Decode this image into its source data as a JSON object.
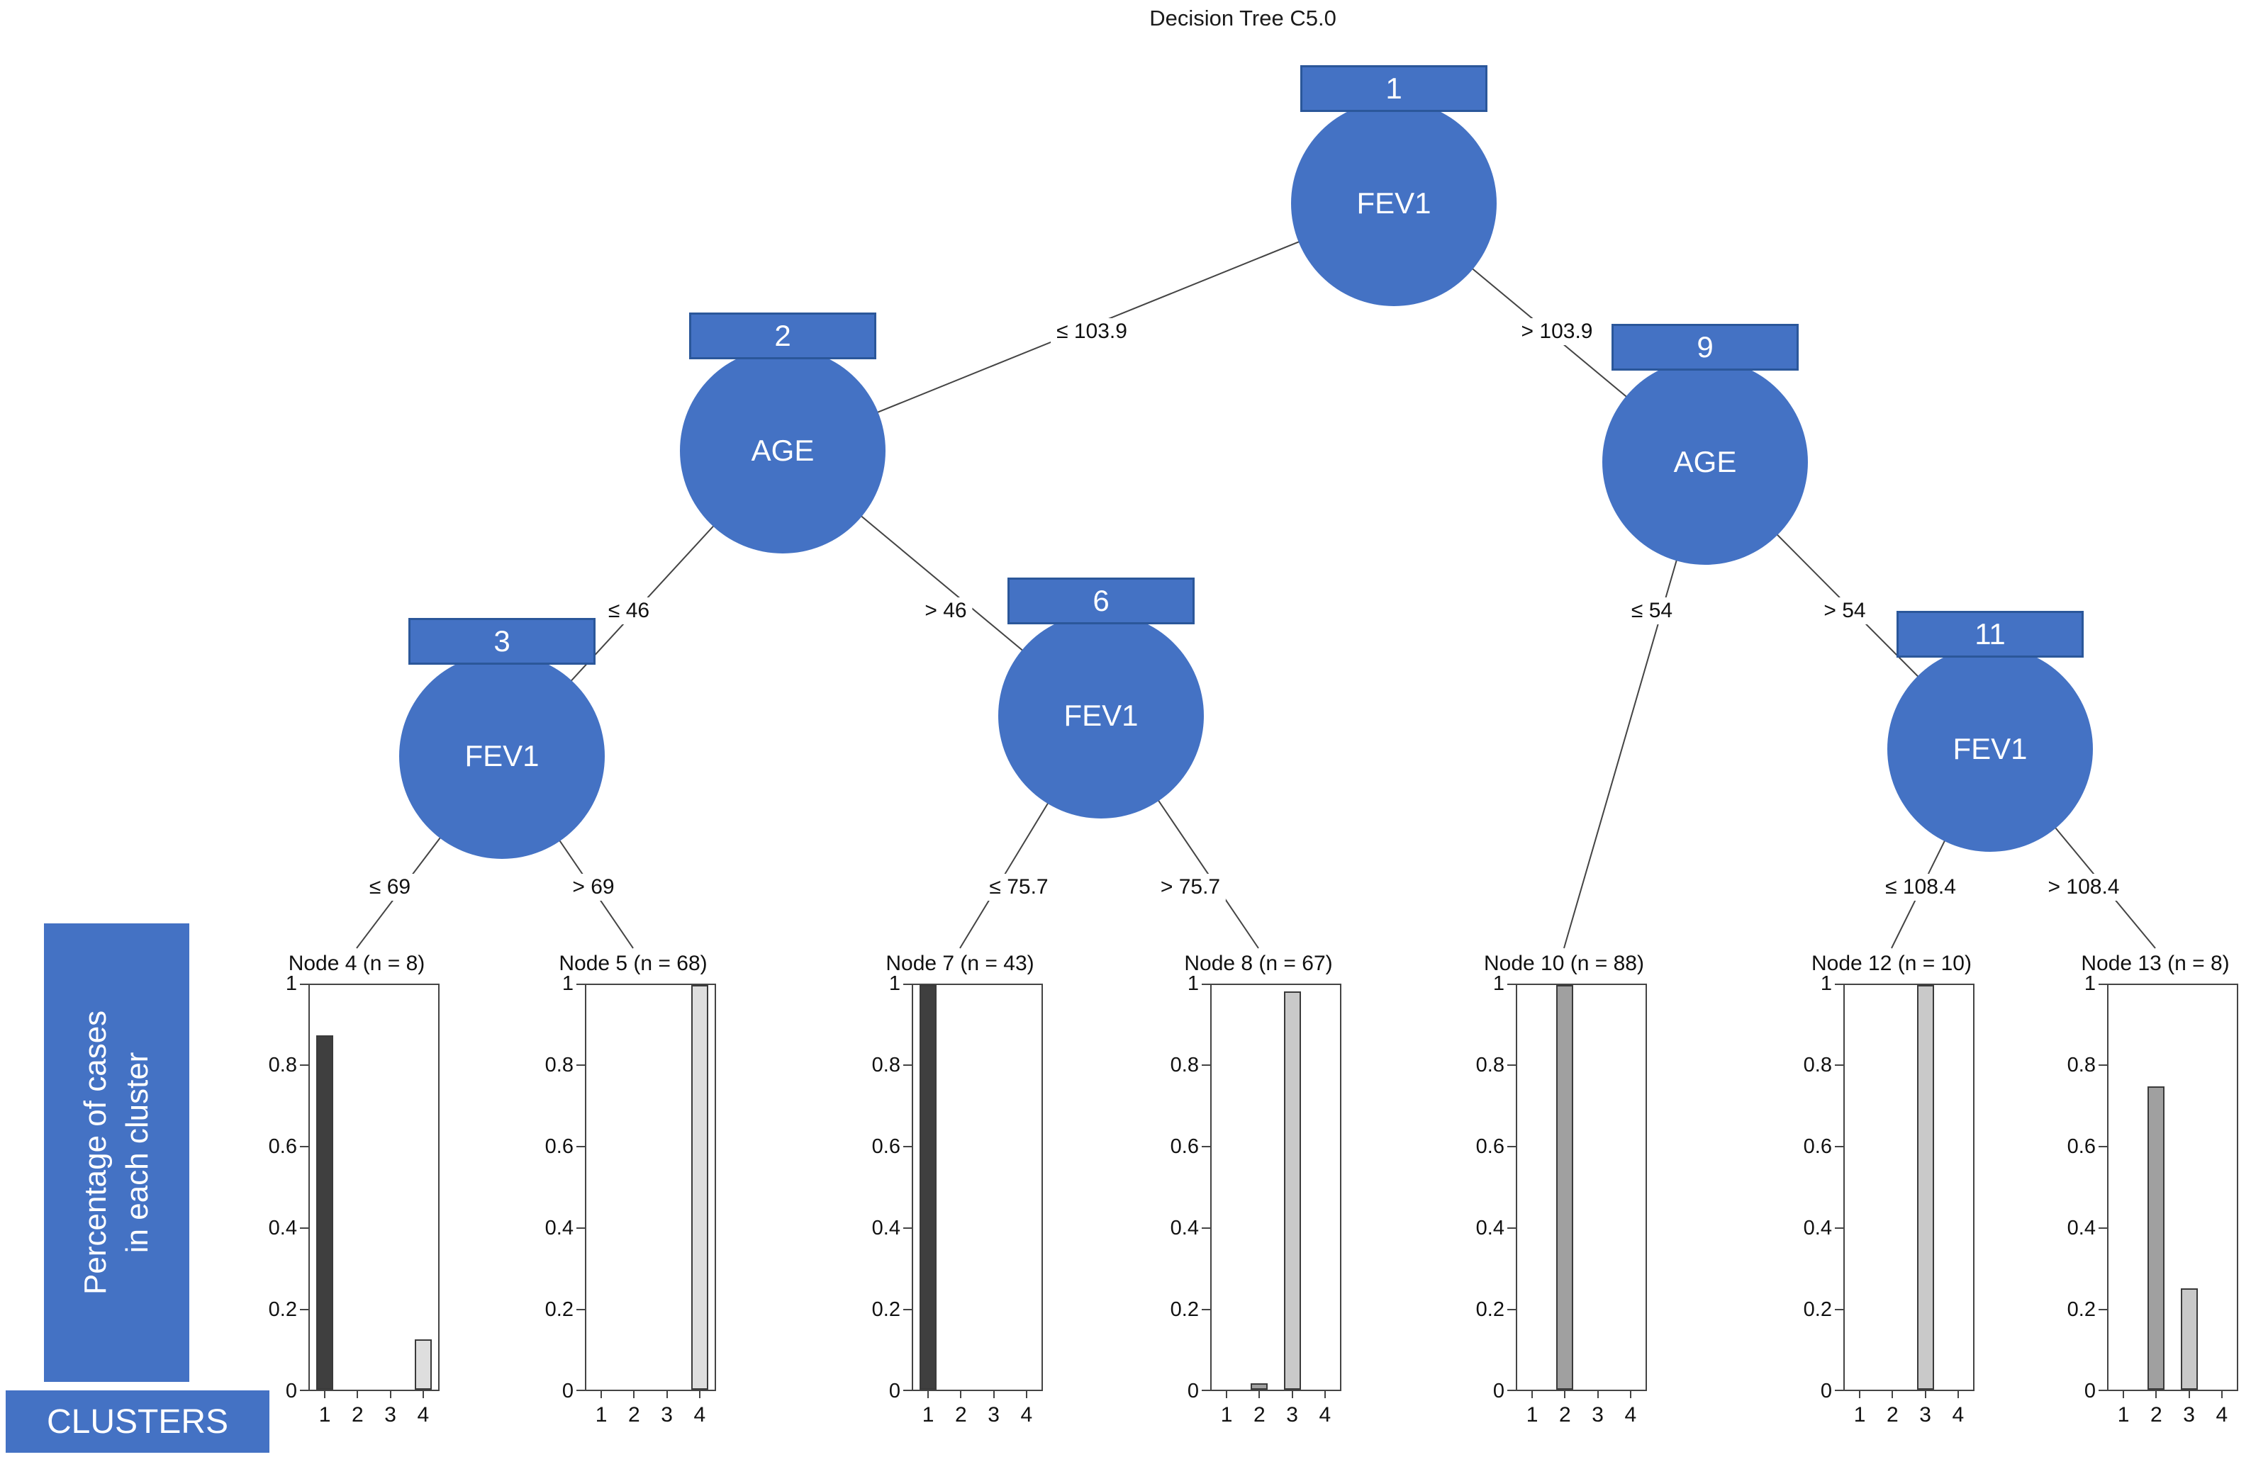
{
  "title": "Decision Tree C5.0",
  "sidebar": {
    "y_axis_label_line1": "Percentage of cases",
    "y_axis_label_line2": "in each cluster",
    "clusters_label": "CLUSTERS"
  },
  "colors": {
    "node_fill": "#4472C4",
    "node_border": "#2B579A",
    "edge_color": "#444444",
    "cluster_colors": [
      "#3F3F3F",
      "#A0A0A0",
      "#C9C9C9",
      "#DEDEDE"
    ]
  },
  "tree": {
    "inner_nodes": [
      {
        "id": "1",
        "variable": "FEV1"
      },
      {
        "id": "2",
        "variable": "AGE"
      },
      {
        "id": "3",
        "variable": "FEV1"
      },
      {
        "id": "6",
        "variable": "FEV1"
      },
      {
        "id": "9",
        "variable": "AGE"
      },
      {
        "id": "11",
        "variable": "FEV1"
      }
    ],
    "edges": [
      {
        "from": "1",
        "to": "2",
        "label": "≤ 103.9"
      },
      {
        "from": "1",
        "to": "9",
        "label": "> 103.9"
      },
      {
        "from": "2",
        "to": "3",
        "label": "≤ 46"
      },
      {
        "from": "2",
        "to": "6",
        "label": "> 46"
      },
      {
        "from": "3",
        "to": "4",
        "label": "≤ 69"
      },
      {
        "from": "3",
        "to": "5",
        "label": "> 69"
      },
      {
        "from": "6",
        "to": "7",
        "label": "≤ 75.7"
      },
      {
        "from": "6",
        "to": "8",
        "label": "> 75.7"
      },
      {
        "from": "9",
        "to": "10",
        "label": "≤ 54"
      },
      {
        "from": "9",
        "to": "11",
        "label": "> 54"
      },
      {
        "from": "11",
        "to": "12",
        "label": "≤ 108.4"
      },
      {
        "from": "11",
        "to": "13",
        "label": "> 108.4"
      }
    ]
  },
  "chart_data": [
    {
      "type": "bar",
      "node_id": "4",
      "title": "Node 4 (n = 8)",
      "n": 8,
      "categories": [
        "1",
        "2",
        "3",
        "4"
      ],
      "values": [
        0.875,
        0,
        0,
        0.125
      ],
      "ylim": [
        0,
        1
      ],
      "yticks": [
        0,
        0.2,
        0.4,
        0.6,
        0.8,
        1
      ]
    },
    {
      "type": "bar",
      "node_id": "5",
      "title": "Node 5 (n = 68)",
      "n": 68,
      "categories": [
        "1",
        "2",
        "3",
        "4"
      ],
      "values": [
        0,
        0,
        0,
        1
      ],
      "ylim": [
        0,
        1
      ],
      "yticks": [
        0,
        0.2,
        0.4,
        0.6,
        0.8,
        1
      ]
    },
    {
      "type": "bar",
      "node_id": "7",
      "title": "Node 7 (n = 43)",
      "n": 43,
      "categories": [
        "1",
        "2",
        "3",
        "4"
      ],
      "values": [
        1,
        0,
        0,
        0
      ],
      "ylim": [
        0,
        1
      ],
      "yticks": [
        0,
        0.2,
        0.4,
        0.6,
        0.8,
        1
      ]
    },
    {
      "type": "bar",
      "node_id": "8",
      "title": "Node 8 (n = 67)",
      "n": 67,
      "categories": [
        "1",
        "2",
        "3",
        "4"
      ],
      "values": [
        0,
        0.015,
        0.985,
        0
      ],
      "ylim": [
        0,
        1
      ],
      "yticks": [
        0,
        0.2,
        0.4,
        0.6,
        0.8,
        1
      ]
    },
    {
      "type": "bar",
      "node_id": "10",
      "title": "Node 10 (n = 88)",
      "n": 88,
      "categories": [
        "1",
        "2",
        "3",
        "4"
      ],
      "values": [
        0,
        1,
        0,
        0
      ],
      "ylim": [
        0,
        1
      ],
      "yticks": [
        0,
        0.2,
        0.4,
        0.6,
        0.8,
        1
      ]
    },
    {
      "type": "bar",
      "node_id": "12",
      "title": "Node 12 (n = 10)",
      "n": 10,
      "categories": [
        "1",
        "2",
        "3",
        "4"
      ],
      "values": [
        0,
        0,
        1,
        0
      ],
      "ylim": [
        0,
        1
      ],
      "yticks": [
        0,
        0.2,
        0.4,
        0.6,
        0.8,
        1
      ]
    },
    {
      "type": "bar",
      "node_id": "13",
      "title": "Node 13 (n = 8)",
      "n": 8,
      "categories": [
        "1",
        "2",
        "3",
        "4"
      ],
      "values": [
        0,
        0.75,
        0.25,
        0
      ],
      "ylim": [
        0,
        1
      ],
      "yticks": [
        0,
        0.2,
        0.4,
        0.6,
        0.8,
        1
      ]
    }
  ]
}
